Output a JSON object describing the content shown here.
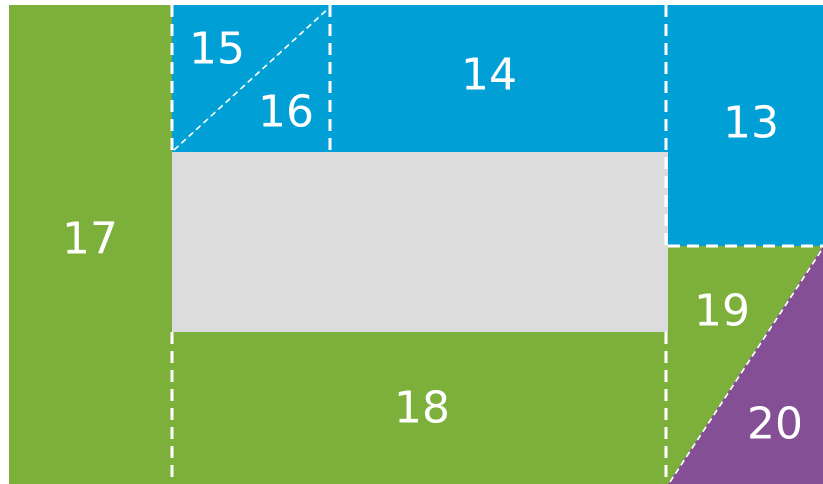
{
  "colors": {
    "green": "#7cb03b",
    "blue": "#00a0d6",
    "gray": "#dcdcdd",
    "purple": "#844f94"
  },
  "regions": [
    {
      "id": "13",
      "label": "13",
      "color": "blue"
    },
    {
      "id": "14",
      "label": "14",
      "color": "blue"
    },
    {
      "id": "15",
      "label": "15",
      "color": "blue"
    },
    {
      "id": "16",
      "label": "16",
      "color": "blue"
    },
    {
      "id": "17",
      "label": "17",
      "color": "green"
    },
    {
      "id": "18",
      "label": "18",
      "color": "green"
    },
    {
      "id": "19",
      "label": "19",
      "color": "green"
    },
    {
      "id": "20",
      "label": "20",
      "color": "purple"
    }
  ]
}
